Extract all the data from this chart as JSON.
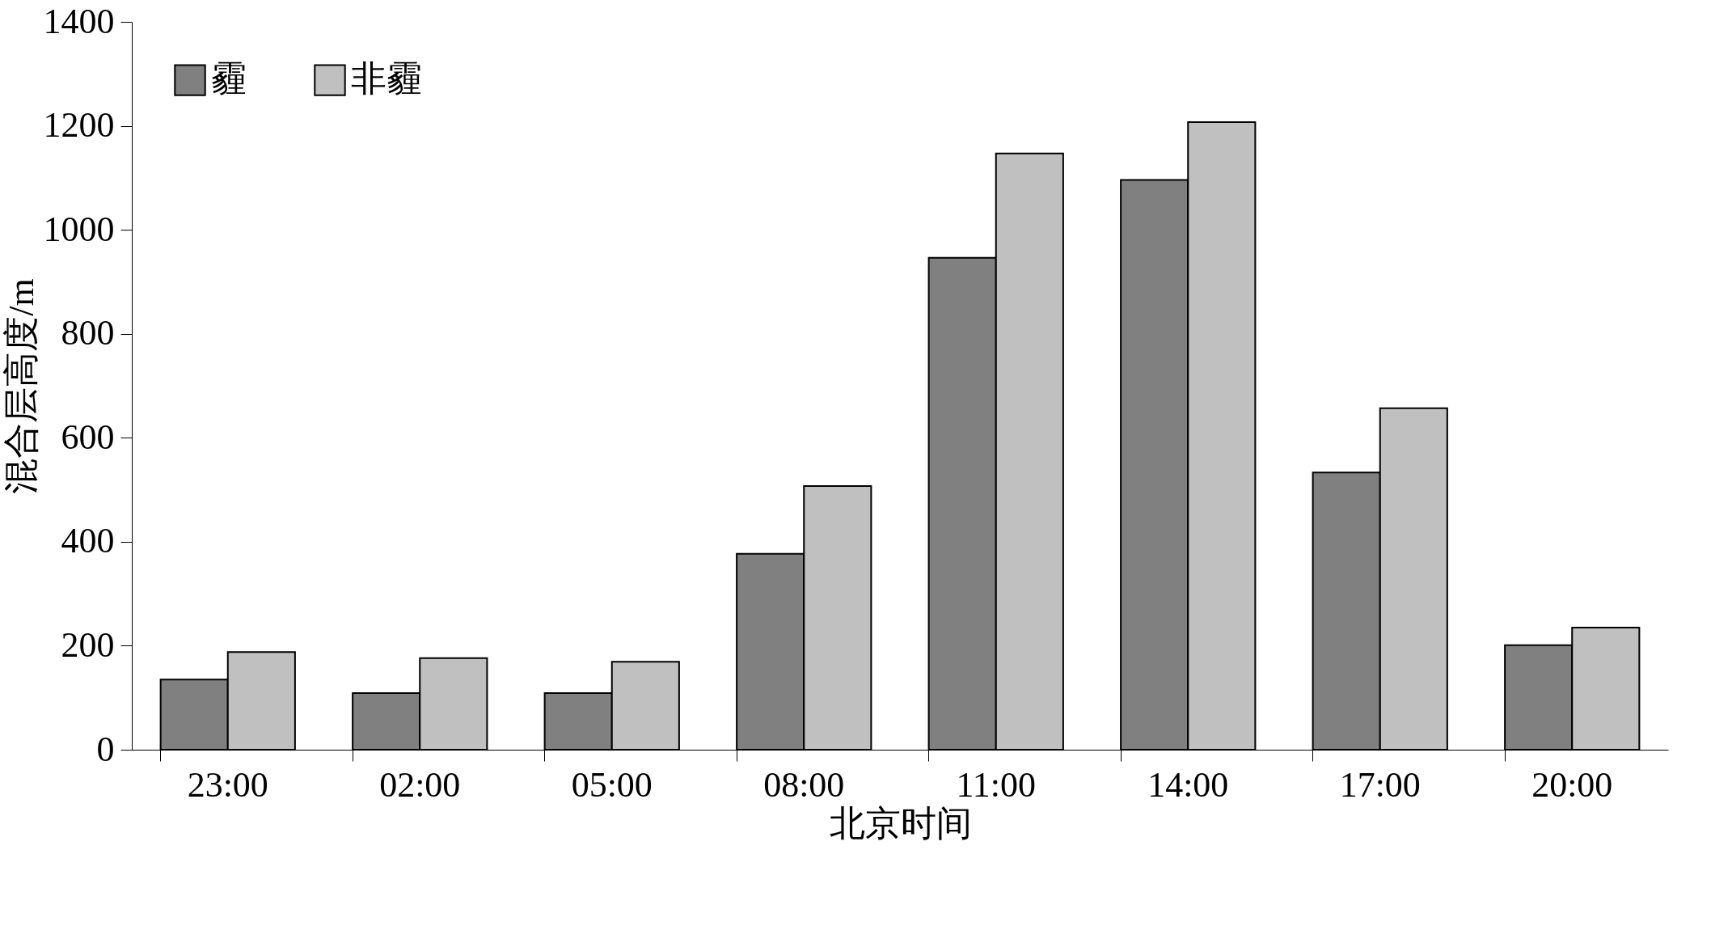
{
  "chart_data": {
    "type": "bar",
    "xlabel": "北京时间",
    "ylabel": "混合层高度/m",
    "categories": [
      "23:00",
      "02:00",
      "05:00",
      "08:00",
      "11:00",
      "14:00",
      "17:00",
      "20:00"
    ],
    "series": [
      {
        "name": "霾",
        "color": "#808080",
        "values": [
          135,
          109,
          109,
          377,
          946,
          1096,
          533,
          201
        ]
      },
      {
        "name": "非霾",
        "color": "#c0c0c0",
        "values": [
          188,
          176,
          169,
          507,
          1147,
          1207,
          657,
          235
        ]
      }
    ],
    "ylim": [
      0,
      1400
    ],
    "yticks": [
      0,
      200,
      400,
      600,
      800,
      1000,
      1200,
      1400
    ],
    "grid": false,
    "legend": "top left"
  }
}
